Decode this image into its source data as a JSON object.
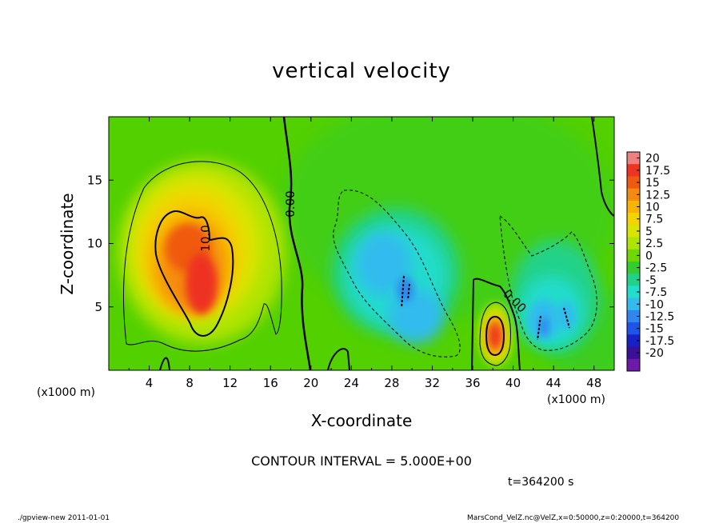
{
  "chart_data": {
    "type": "heatmap",
    "title": "vertical velocity",
    "xlabel": "X-coordinate",
    "ylabel": "Z-coordinate",
    "x_unit": "(x1000 m)",
    "xlim": [
      0,
      50
    ],
    "ylim": [
      0,
      20
    ],
    "x_ticks": [
      4,
      8,
      12,
      16,
      20,
      24,
      28,
      32,
      36,
      40,
      44,
      48
    ],
    "y_ticks": [
      5,
      10,
      15
    ],
    "colorbar": {
      "labels": [
        "20",
        "17.5",
        "15",
        "12.5",
        "10",
        "7.5",
        "5",
        "2.5",
        "0",
        "-2.5",
        "-5",
        "-7.5",
        "-10",
        "-12.5",
        "-15",
        "-17.5",
        "-20"
      ],
      "colors": [
        "#f08080",
        "#ee3322",
        "#f05a10",
        "#f58a10",
        "#f7b400",
        "#f3d400",
        "#d8e500",
        "#aee400",
        "#6fd800",
        "#33cc33",
        "#22d28a",
        "#22dccc",
        "#33bbee",
        "#2f86ef",
        "#1f54e8",
        "#1722c6",
        "#3a1096",
        "#6e1aa8"
      ]
    },
    "contour_labels": [
      "0.00",
      "10.0",
      "0.00"
    ],
    "features": [
      {
        "kind": "updraft",
        "x_center": 8.5,
        "z_center": 8,
        "peak": 15
      },
      {
        "kind": "updraft",
        "x_center": 38,
        "z_center": 3,
        "peak": 12.5
      },
      {
        "kind": "downdraft",
        "x_center": 30,
        "z_center": 6,
        "peak": -10
      },
      {
        "kind": "downdraft",
        "x_center": 43.5,
        "z_center": 4,
        "peak": -10
      }
    ]
  },
  "contour_interval": "CONTOUR INTERVAL = 5.000E+00",
  "time_label": "t=364200 s",
  "footer_left": "./gpview-new  2011-01-01",
  "footer_right": "MarsCond_VelZ.nc@VelZ,x=0:50000,z=0:20000,t=364200"
}
